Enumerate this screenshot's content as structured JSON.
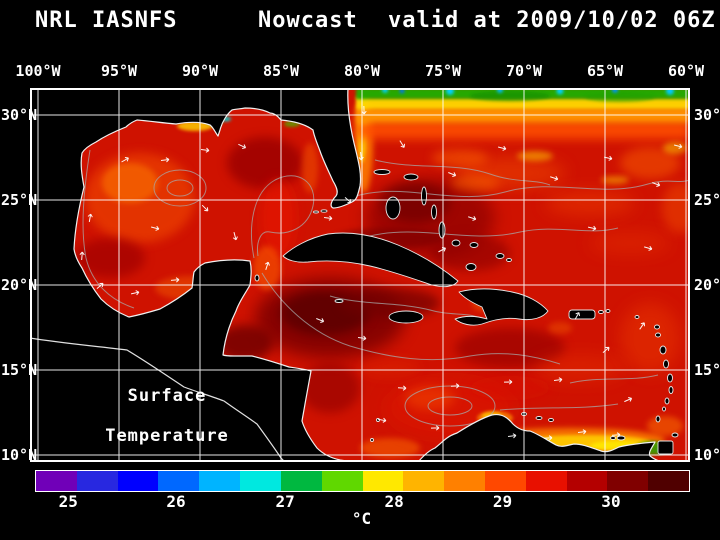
{
  "header": {
    "model": "NRL IASNFS",
    "product": "Nowcast",
    "valid_time": "valid at 2009/10/02 06Z"
  },
  "map": {
    "overlay_label": {
      "line1": "Surface",
      "line2": "Temperature"
    },
    "lon_labels": [
      "100°W",
      "95°W",
      "90°W",
      "85°W",
      "80°W",
      "75°W",
      "70°W",
      "65°W",
      "60°W"
    ],
    "lat_labels_left": [
      "30°N",
      "25°N",
      "20°N",
      "15°N",
      "10°N"
    ],
    "lat_labels_right": [
      "30°N",
      "25°N",
      "20°N",
      "15°N",
      "10°N"
    ]
  },
  "colorbar": {
    "unit": "°C",
    "tick_labels": [
      "25",
      "26",
      "27",
      "28",
      "29",
      "30"
    ],
    "tick_positions_pct": [
      5.1,
      21.6,
      38.3,
      55.0,
      71.6,
      88.2
    ],
    "segments": [
      "#7000b8",
      "#2828e0",
      "#0000ff",
      "#0068ff",
      "#00b4ff",
      "#00e8e0",
      "#00b840",
      "#60d800",
      "#ffe800",
      "#ffb400",
      "#ff8000",
      "#ff4800",
      "#e81000",
      "#b40000",
      "#800000",
      "#500000"
    ]
  },
  "chart_data": {
    "type": "heatmap",
    "title": "NRL IASNFS Nowcast valid at 2009/10/02 06Z",
    "variable": "Surface Temperature",
    "unit": "°C",
    "x_ticks": [
      "100°W",
      "95°W",
      "90°W",
      "85°W",
      "80°W",
      "75°W",
      "70°W",
      "65°W",
      "60°W"
    ],
    "y_ticks": [
      "30°N",
      "25°N",
      "20°N",
      "15°N",
      "10°N"
    ],
    "colorbar_ticks": [
      25,
      26,
      27,
      28,
      29,
      30
    ],
    "colorbar_range_c": [
      24.7,
      30.7
    ],
    "palette": [
      "#7000b8",
      "#2828e0",
      "#0000ff",
      "#0068ff",
      "#00b4ff",
      "#00e8e0",
      "#00b840",
      "#60d800",
      "#ffe800",
      "#ffb400",
      "#ff8000",
      "#ff4800",
      "#e81000",
      "#b40000",
      "#800000",
      "#500000"
    ],
    "legend_position": "bottom"
  }
}
